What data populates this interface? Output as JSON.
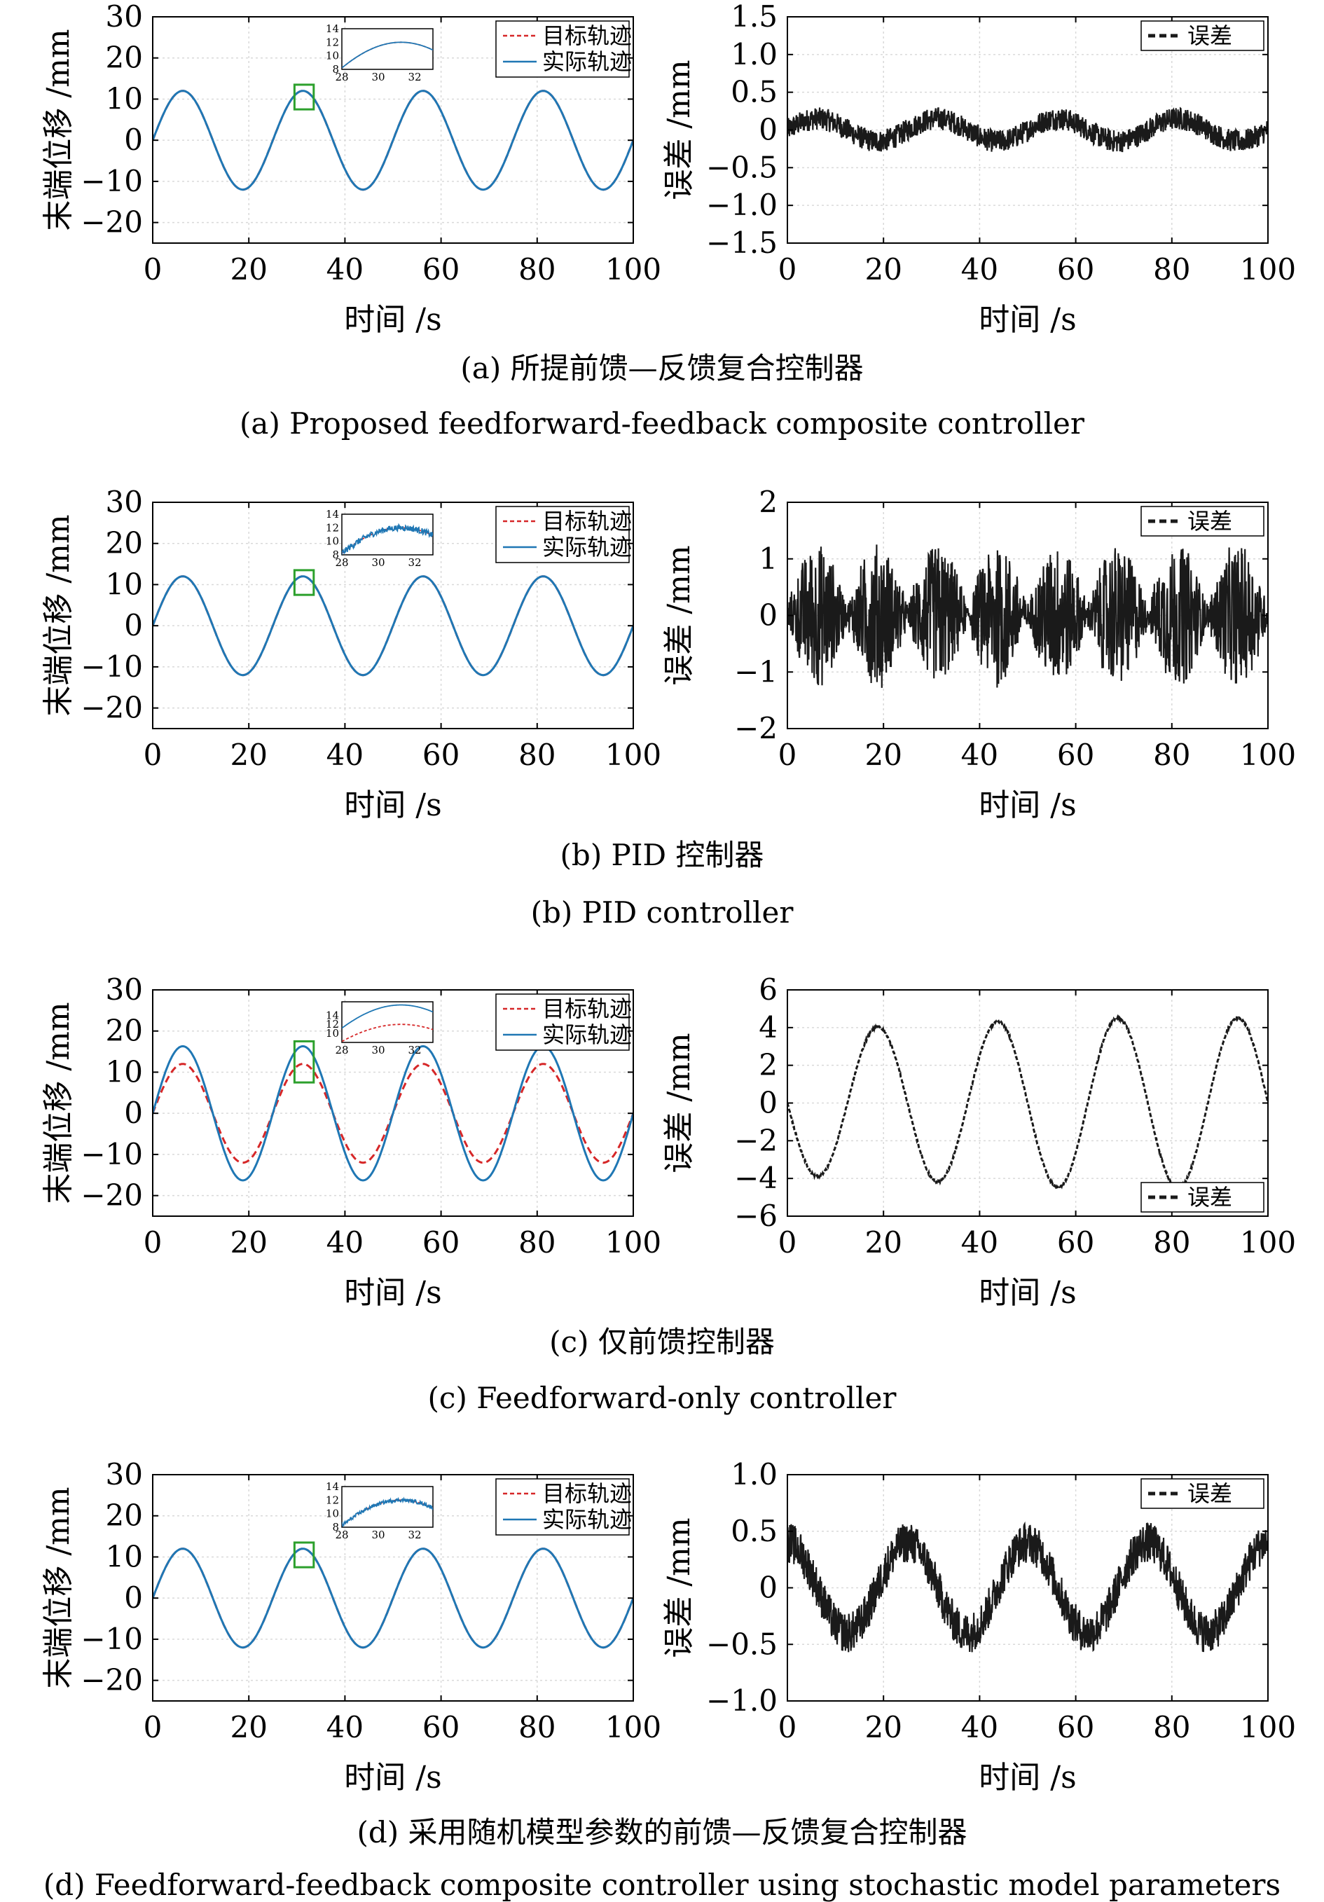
{
  "chart_data": [
    {
      "id": "a-left",
      "type": "line",
      "xlabel": "时间 /s",
      "ylabel": "末端位移 /mm",
      "xlim": [
        0,
        100
      ],
      "ylim": [
        -25,
        30
      ],
      "xticks": [
        0,
        20,
        40,
        60,
        80,
        100
      ],
      "yticks": [
        -20,
        -10,
        0,
        10,
        20,
        30
      ],
      "grid": true,
      "legend": "top-right",
      "series": [
        {
          "name": "目标轨迹",
          "color": "#d62728",
          "style": "dashed",
          "amplitude": 12,
          "period": 25
        },
        {
          "name": "实际轨迹",
          "color": "#1f77b4",
          "style": "solid",
          "amplitude": 12,
          "period": 25
        }
      ],
      "inset": {
        "xlim": [
          28,
          33
        ],
        "ylim": [
          8,
          14
        ],
        "xticks": [
          28,
          30,
          32
        ],
        "yticks": [
          8,
          10,
          12,
          14
        ],
        "region": [
          29.5,
          33.5,
          7.5,
          13.5
        ]
      }
    },
    {
      "id": "a-right",
      "type": "line",
      "xlabel": "时间 /s",
      "ylabel": "误差 /mm",
      "xlim": [
        0,
        100
      ],
      "ylim": [
        -1.5,
        1.5
      ],
      "xticks": [
        0,
        20,
        40,
        60,
        80,
        100
      ],
      "yticks": [
        -1.5,
        -1.0,
        -0.5,
        0,
        0.5,
        1.0,
        1.5
      ],
      "ytick_labels": [
        "−1.5",
        "−1.0",
        "−0.5",
        "0",
        "0.5",
        "1.0",
        "1.5"
      ],
      "grid": true,
      "legend": "top-right",
      "series": [
        {
          "name": "误差",
          "color": "#1a1a1a",
          "style": "dashed",
          "sine_amplitude": 0.15,
          "period": 25,
          "noise": 0.15
        }
      ]
    },
    {
      "id": "b-left",
      "type": "line",
      "xlabel": "时间 /s",
      "ylabel": "末端位移 /mm",
      "xlim": [
        0,
        100
      ],
      "ylim": [
        -25,
        30
      ],
      "xticks": [
        0,
        20,
        40,
        60,
        80,
        100
      ],
      "yticks": [
        -20,
        -10,
        0,
        10,
        20,
        30
      ],
      "grid": true,
      "legend": "top-right",
      "series": [
        {
          "name": "目标轨迹",
          "color": "#d62728",
          "style": "dashed",
          "amplitude": 12,
          "period": 25
        },
        {
          "name": "实际轨迹",
          "color": "#1f77b4",
          "style": "solid",
          "amplitude": 12,
          "period": 25
        }
      ],
      "inset": {
        "xlim": [
          28,
          33
        ],
        "ylim": [
          8,
          14
        ],
        "xticks": [
          28,
          30,
          32
        ],
        "yticks": [
          8,
          10,
          12,
          14
        ],
        "region": [
          29.5,
          33.5,
          7.5,
          13.5
        ]
      }
    },
    {
      "id": "b-right",
      "type": "line",
      "xlabel": "时间 /s",
      "ylabel": "误差 /mm",
      "xlim": [
        0,
        100
      ],
      "ylim": [
        -2,
        2
      ],
      "xticks": [
        0,
        20,
        40,
        60,
        80,
        100
      ],
      "yticks": [
        -2,
        -1,
        0,
        1,
        2
      ],
      "ytick_labels": [
        "−2",
        "−1",
        "0",
        "1",
        "2"
      ],
      "grid": true,
      "legend": "top-right",
      "series": [
        {
          "name": "误差",
          "color": "#1a1a1a",
          "style": "dashed",
          "envelope_amplitude": 1.1,
          "envelope_period": 12.5,
          "noise": 0.15
        }
      ]
    },
    {
      "id": "c-left",
      "type": "line",
      "xlabel": "时间 /s",
      "ylabel": "末端位移 /mm",
      "xlim": [
        0,
        100
      ],
      "ylim": [
        -25,
        30
      ],
      "xticks": [
        0,
        20,
        40,
        60,
        80,
        100
      ],
      "yticks": [
        -20,
        -10,
        0,
        10,
        20,
        30
      ],
      "grid": true,
      "legend": "top-right",
      "series": [
        {
          "name": "目标轨迹",
          "color": "#d62728",
          "style": "dashed",
          "amplitude": 12,
          "period": 25
        },
        {
          "name": "实际轨迹",
          "color": "#1f77b4",
          "style": "solid",
          "amplitude": 16.3,
          "period": 25
        }
      ],
      "inset": {
        "xlim": [
          28,
          33
        ],
        "ylim": [
          8,
          17
        ],
        "xticks": [
          28,
          30,
          32
        ],
        "yticks": [
          10,
          12,
          14
        ],
        "region": [
          29.5,
          33.5,
          7.5,
          17.5
        ]
      }
    },
    {
      "id": "c-right",
      "type": "line",
      "xlabel": "时间 /s",
      "ylabel": "误差 /mm",
      "xlim": [
        0,
        100
      ],
      "ylim": [
        -6,
        6
      ],
      "xticks": [
        0,
        20,
        40,
        60,
        80,
        100
      ],
      "yticks": [
        -6,
        -4,
        -2,
        0,
        2,
        4,
        6
      ],
      "ytick_labels": [
        "−6",
        "−4",
        "−2",
        "0",
        "2",
        "4",
        "6"
      ],
      "grid": true,
      "legend": "bottom-right",
      "series": [
        {
          "name": "误差",
          "color": "#1a1a1a",
          "style": "dashed",
          "amplitude": 4.5,
          "period": 25,
          "noise": 0.05
        }
      ]
    },
    {
      "id": "d-left",
      "type": "line",
      "xlabel": "时间 /s",
      "ylabel": "末端位移 /mm",
      "xlim": [
        0,
        100
      ],
      "ylim": [
        -25,
        30
      ],
      "xticks": [
        0,
        20,
        40,
        60,
        80,
        100
      ],
      "yticks": [
        -20,
        -10,
        0,
        10,
        20,
        30
      ],
      "grid": true,
      "legend": "top-right",
      "series": [
        {
          "name": "目标轨迹",
          "color": "#d62728",
          "style": "dashed",
          "amplitude": 12,
          "period": 25
        },
        {
          "name": "实际轨迹",
          "color": "#1f77b4",
          "style": "solid",
          "amplitude": 12,
          "period": 25
        }
      ],
      "inset": {
        "xlim": [
          28,
          33
        ],
        "ylim": [
          8,
          14
        ],
        "xticks": [
          28,
          30,
          32
        ],
        "yticks": [
          8,
          10,
          12,
          14
        ],
        "region": [
          29.5,
          33.5,
          7.5,
          13.5
        ]
      }
    },
    {
      "id": "d-right",
      "type": "line",
      "xlabel": "时间 /s",
      "ylabel": "误差 /mm",
      "xlim": [
        0,
        100
      ],
      "ylim": [
        -1.0,
        1.0
      ],
      "xticks": [
        0,
        20,
        40,
        60,
        80,
        100
      ],
      "yticks": [
        -1.0,
        -0.5,
        0,
        0.5,
        1.0
      ],
      "ytick_labels": [
        "−1.0",
        "−0.5",
        "0",
        "0.5",
        "1.0"
      ],
      "grid": true,
      "legend": "top-right",
      "series": [
        {
          "name": "误差",
          "color": "#1a1a1a",
          "style": "dashed",
          "sine_amplitude": 0.4,
          "period": 25,
          "phase_deg": 90,
          "noise": 0.18
        }
      ]
    }
  ],
  "captions": {
    "a_cn": "(a) 所提前馈—反馈复合控制器",
    "a_en": "(a) Proposed feedforward-feedback composite controller",
    "b_cn": "(b) PID 控制器",
    "b_en": "(b) PID controller",
    "c_cn": "(c) 仅前馈控制器",
    "c_en": "(c) Feedforward-only controller",
    "d_cn": "(d) 采用随机模型参数的前馈—反馈复合控制器",
    "d_en": "(d) Feedforward-feedback composite controller using stochastic model parameters"
  }
}
